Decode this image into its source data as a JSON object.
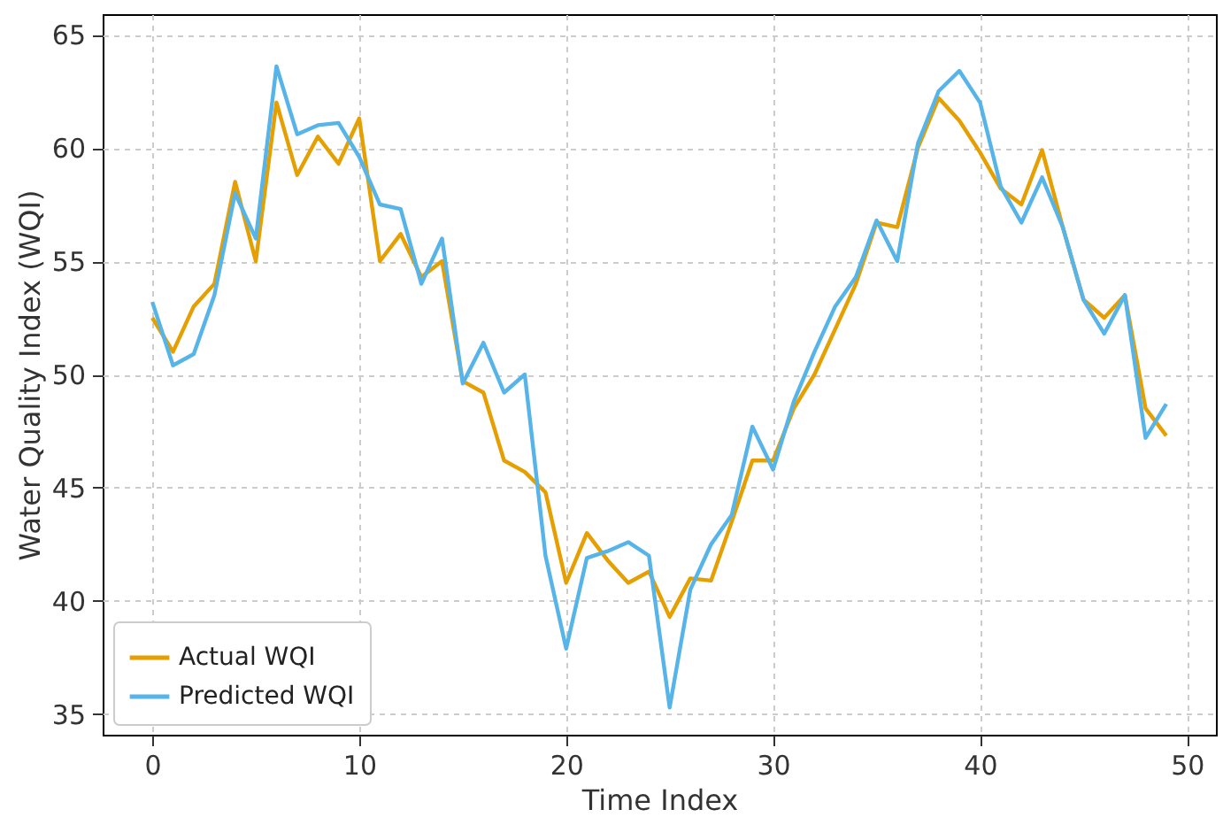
{
  "chart_data": {
    "type": "line",
    "xlabel": "Time Index",
    "ylabel": "Water Quality Index (WQI)",
    "x": [
      0,
      1,
      2,
      3,
      4,
      5,
      6,
      7,
      8,
      9,
      10,
      11,
      12,
      13,
      14,
      15,
      16,
      17,
      18,
      19,
      20,
      21,
      22,
      23,
      24,
      25,
      26,
      27,
      28,
      29,
      30,
      31,
      32,
      33,
      34,
      35,
      36,
      37,
      38,
      39,
      40,
      41,
      42,
      43,
      44,
      45,
      46,
      47,
      48,
      49
    ],
    "series": [
      {
        "name": "Actual WQI",
        "color": "#e69f00",
        "values": [
          52.5,
          51,
          53,
          54,
          58.5,
          55,
          62,
          58.8,
          60.5,
          59.3,
          61.3,
          55,
          56.2,
          54.3,
          55,
          49.7,
          49.2,
          46.2,
          45.7,
          44.8,
          40.8,
          43,
          41.8,
          40.8,
          41.3,
          39.3,
          41,
          40.9,
          43.5,
          46.2,
          46.2,
          48.5,
          50,
          52,
          54,
          56.7,
          56.5,
          60,
          62.2,
          61.2,
          59.8,
          58.2,
          57.5,
          59.9,
          56.5,
          53.3,
          52.5,
          53.5,
          48.5,
          47.3
        ]
      },
      {
        "name": "Predicted WQI",
        "color": "#56b4e9",
        "values": [
          53.2,
          50.4,
          50.9,
          53.5,
          58,
          56,
          63.6,
          60.6,
          61,
          61.1,
          59.6,
          57.5,
          57.3,
          54,
          56,
          49.6,
          51.4,
          49.2,
          50,
          42,
          37.9,
          41.9,
          42.2,
          42.6,
          42,
          35.3,
          40.5,
          42.5,
          43.8,
          47.7,
          45.8,
          48.8,
          51,
          53,
          54.3,
          56.8,
          55,
          60.2,
          62.5,
          63.4,
          62,
          58.3,
          56.7,
          58.7,
          56.5,
          53.3,
          51.8,
          53.5,
          47.2,
          48.7
        ]
      }
    ],
    "xlim": [
      -2.4,
      51.4
    ],
    "xticks": [
      0,
      10,
      20,
      30,
      40,
      50
    ],
    "ylim": [
      34.1,
      65.9
    ],
    "yticks": [
      35,
      40,
      45,
      50,
      55,
      60,
      65
    ],
    "grid": true,
    "legend": "bottom left",
    "line_style": "solid",
    "marker": "none"
  }
}
